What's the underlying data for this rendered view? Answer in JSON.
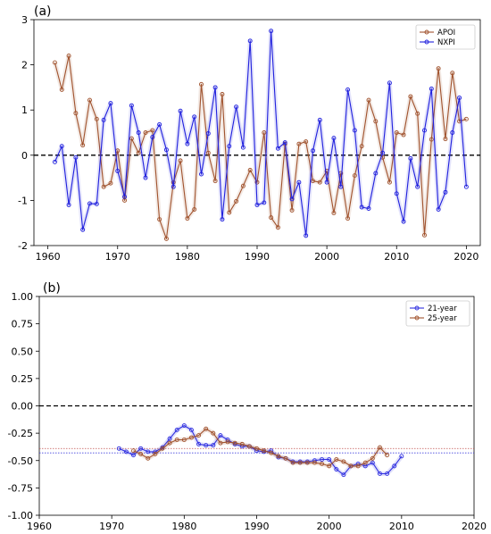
{
  "chart_data": [
    {
      "type": "line",
      "panel_label": "(a)",
      "xlim": [
        1958,
        2022
      ],
      "ylim": [
        -2,
        3
      ],
      "xticks": [
        1960,
        1970,
        1980,
        1990,
        2000,
        2010,
        2020
      ],
      "yticks": [
        -2,
        -1,
        0,
        1,
        2,
        3
      ],
      "zero_line": "black dashed",
      "legend_position": "top-right",
      "x": [
        1961,
        1962,
        1963,
        1964,
        1965,
        1966,
        1967,
        1968,
        1969,
        1970,
        1971,
        1972,
        1973,
        1974,
        1975,
        1976,
        1977,
        1978,
        1979,
        1980,
        1981,
        1982,
        1983,
        1984,
        1985,
        1986,
        1987,
        1988,
        1989,
        1990,
        1991,
        1992,
        1993,
        1994,
        1995,
        1996,
        1997,
        1998,
        1999,
        2000,
        2001,
        2002,
        2003,
        2004,
        2005,
        2006,
        2007,
        2008,
        2009,
        2010,
        2011,
        2012,
        2013,
        2014,
        2015,
        2016,
        2017,
        2018,
        2019,
        2020
      ],
      "series": [
        {
          "name": "APOI",
          "color": "#a0522d",
          "marker": "o",
          "values": [
            2.05,
            1.45,
            2.2,
            0.93,
            0.22,
            1.22,
            0.8,
            -0.7,
            -0.62,
            0.1,
            -1.0,
            0.37,
            0.05,
            0.5,
            0.55,
            -1.42,
            -1.85,
            -0.6,
            -0.12,
            -1.4,
            -1.2,
            1.57,
            0.05,
            -0.57,
            1.35,
            -1.27,
            -1.02,
            -0.68,
            -0.33,
            -0.6,
            0.5,
            -1.38,
            -1.6,
            0.25,
            -1.22,
            0.25,
            0.3,
            -0.57,
            -0.6,
            -0.35,
            -1.28,
            -0.4,
            -1.4,
            -0.45,
            0.2,
            1.22,
            0.75,
            -0.05,
            -0.6,
            0.5,
            0.45,
            1.3,
            0.92,
            -1.77,
            0.35,
            1.92,
            0.36,
            1.82,
            0.75,
            0.8
          ]
        },
        {
          "name": "NXPI",
          "color": "#2020dd",
          "marker": "o",
          "values": [
            -0.15,
            0.2,
            -1.1,
            -0.05,
            -1.65,
            -1.07,
            -1.08,
            0.78,
            1.15,
            -0.35,
            -0.92,
            1.1,
            0.5,
            -0.5,
            0.4,
            0.68,
            0.12,
            -0.7,
            0.98,
            0.25,
            0.85,
            -0.42,
            0.48,
            1.5,
            -1.42,
            0.2,
            1.07,
            0.17,
            2.53,
            -1.1,
            -1.05,
            2.75,
            0.15,
            0.28,
            -0.97,
            -0.6,
            -1.78,
            0.1,
            0.78,
            -0.6,
            0.38,
            -0.7,
            1.45,
            0.55,
            -1.15,
            -1.18,
            -0.4,
            0.05,
            1.6,
            -0.85,
            -1.47,
            -0.07,
            -0.7,
            0.55,
            1.47,
            -1.2,
            -0.82,
            0.5,
            1.27,
            -0.7
          ]
        }
      ]
    },
    {
      "type": "line",
      "panel_label": "(b)",
      "xlim": [
        1960,
        2020
      ],
      "ylim": [
        -1.0,
        1.0
      ],
      "xticks": [
        1960,
        1970,
        1980,
        1990,
        2000,
        2010,
        2020
      ],
      "yticks": [
        "-1.00",
        "-0.75",
        "-0.50",
        "-0.25",
        "0.00",
        "0.25",
        "0.50",
        "0.75",
        "1.00"
      ],
      "zero_line": "black dashed",
      "legend_position": "top-right",
      "reference_lines": [
        {
          "value": -0.39,
          "color": "#c0504d",
          "style": "dotted"
        },
        {
          "value": -0.43,
          "color": "#4040dd",
          "style": "dotted"
        }
      ],
      "series": [
        {
          "name": "21-year",
          "color": "#3030e0",
          "x": [
            1971,
            1972,
            1973,
            1974,
            1975,
            1976,
            1977,
            1978,
            1979,
            1980,
            1981,
            1982,
            1983,
            1984,
            1985,
            1986,
            1987,
            1988,
            1989,
            1990,
            1991,
            1992,
            1993,
            1994,
            1995,
            1996,
            1997,
            1998,
            1999,
            2000,
            2001,
            2002,
            2003,
            2004,
            2005,
            2006,
            2007,
            2008,
            2009,
            2010
          ],
          "values": [
            -0.39,
            -0.42,
            -0.45,
            -0.39,
            -0.42,
            -0.42,
            -0.38,
            -0.3,
            -0.22,
            -0.18,
            -0.22,
            -0.35,
            -0.36,
            -0.36,
            -0.27,
            -0.31,
            -0.35,
            -0.37,
            -0.37,
            -0.41,
            -0.42,
            -0.41,
            -0.47,
            -0.48,
            -0.51,
            -0.51,
            -0.51,
            -0.5,
            -0.49,
            -0.49,
            -0.58,
            -0.63,
            -0.55,
            -0.53,
            -0.55,
            -0.52,
            -0.62,
            -0.62,
            -0.55,
            -0.46
          ]
        },
        {
          "name": "25-year",
          "color": "#a0522d",
          "x": [
            1973,
            1974,
            1975,
            1976,
            1977,
            1978,
            1979,
            1980,
            1981,
            1982,
            1983,
            1984,
            1985,
            1986,
            1987,
            1988,
            1989,
            1990,
            1991,
            1992,
            1993,
            1994,
            1995,
            1996,
            1997,
            1998,
            1999,
            2000,
            2001,
            2002,
            2003,
            2004,
            2005,
            2006,
            2007,
            2008
          ],
          "values": [
            -0.41,
            -0.44,
            -0.48,
            -0.44,
            -0.39,
            -0.34,
            -0.31,
            -0.31,
            -0.29,
            -0.27,
            -0.21,
            -0.25,
            -0.34,
            -0.33,
            -0.34,
            -0.35,
            -0.37,
            -0.39,
            -0.41,
            -0.43,
            -0.46,
            -0.48,
            -0.52,
            -0.52,
            -0.52,
            -0.52,
            -0.53,
            -0.55,
            -0.49,
            -0.51,
            -0.55,
            -0.55,
            -0.52,
            -0.48,
            -0.38,
            -0.45
          ]
        }
      ]
    }
  ]
}
